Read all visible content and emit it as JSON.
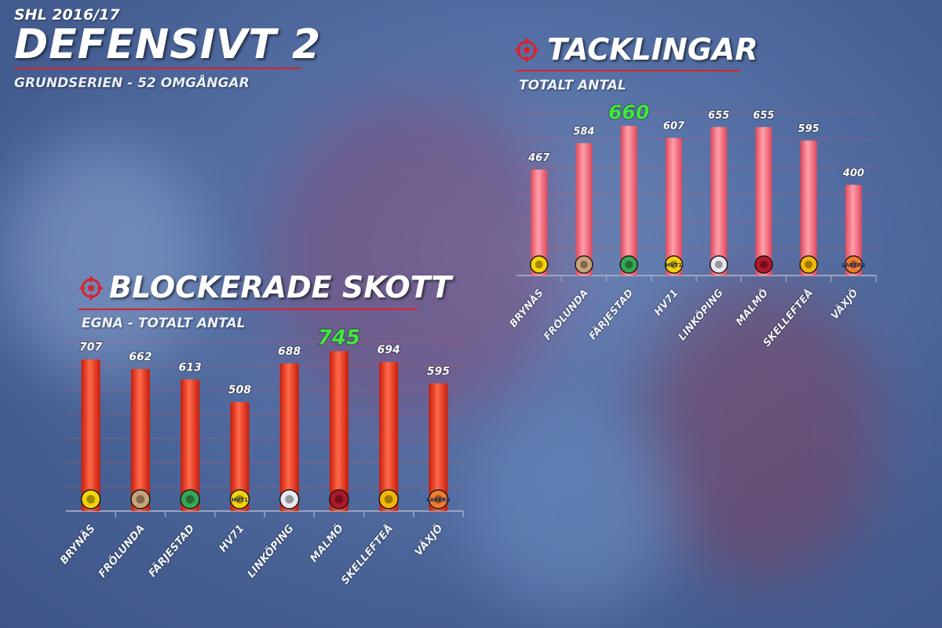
{
  "header": {
    "league": "SHL 2016/17",
    "title": "DEFENSIVT 2",
    "subtitle": "GRUNDSERIEN - 52 OMGÅNGAR"
  },
  "panels": {
    "tacklingar": {
      "title": "TACKLINGAR",
      "subtitle": "TOTALT ANTAL"
    },
    "blockerade": {
      "title": "BLOCKERADE SKOTT",
      "subtitle": "EGNA - TOTALT ANTAL"
    }
  },
  "colors": {
    "tackle_bar": "#f5707c",
    "block_bar": "#f22a14",
    "highlight": "#3ee83c",
    "accent_red": "#d8222a"
  },
  "chart_data": [
    {
      "id": "tacklingar",
      "type": "bar",
      "title": "TACKLINGAR",
      "subtitle": "TOTALT ANTAL",
      "categories": [
        "BRYNÄS",
        "FRÖLUNDA",
        "FÄRJESTAD",
        "HV71",
        "LINKÖPING",
        "MALMÖ",
        "SKELLEFTEÅ",
        "VÄXJÖ"
      ],
      "values": [
        467,
        584,
        660,
        607,
        655,
        655,
        595,
        400
      ],
      "highlight_index": 2,
      "ylim": [
        0,
        720
      ],
      "grid": true
    },
    {
      "id": "blockerade",
      "type": "bar",
      "title": "BLOCKERADE SKOTT",
      "subtitle": "EGNA - TOTALT ANTAL",
      "categories": [
        "BRYNÄS",
        "FRÖLUNDA",
        "FÄRJESTAD",
        "HV71",
        "LINKÖPING",
        "MALMÖ",
        "SKELLEFTEÅ",
        "VÄXJÖ"
      ],
      "values": [
        707,
        662,
        613,
        508,
        688,
        745,
        694,
        595
      ],
      "highlight_index": 5,
      "ylim": [
        0,
        790
      ],
      "grid": true
    }
  ],
  "logos": [
    {
      "icon": "brynas-logo-icon",
      "color": "#f5d20a",
      "text": ""
    },
    {
      "icon": "frolunda-logo-icon",
      "color": "#c9a27a",
      "text": ""
    },
    {
      "icon": "farjestad-logo-icon",
      "color": "#3aa655",
      "text": ""
    },
    {
      "icon": "hv71-logo-icon",
      "color": "#f5d20a",
      "text": "HV71"
    },
    {
      "icon": "linkoping-logo-icon",
      "color": "#e8e8f0",
      "text": ""
    },
    {
      "icon": "malmo-logo-icon",
      "color": "#b0172a",
      "text": ""
    },
    {
      "icon": "skelleftea-logo-icon",
      "color": "#f2b705",
      "text": ""
    },
    {
      "icon": "vaxjo-logo-icon",
      "color": "#f07d2a",
      "text": "LAKERS"
    }
  ]
}
